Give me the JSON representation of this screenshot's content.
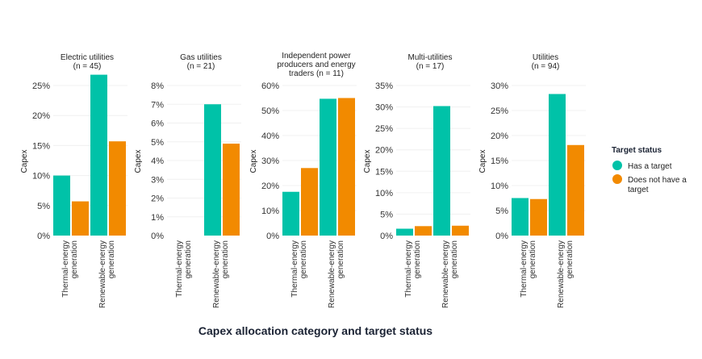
{
  "chart_data": {
    "type": "bar",
    "xlabel": "Capex allocation category and target status",
    "ylabel": "Capex",
    "categories": [
      "Thermal-energy generation",
      "Renewable-energy generation"
    ],
    "category_label_lines": [
      [
        "Thermal-energy",
        "generation"
      ],
      [
        "Renewable-energy",
        "generation"
      ]
    ],
    "legend": {
      "title": "Target status",
      "position": "right",
      "entries": [
        {
          "name": "Has a target",
          "label_lines": [
            "Has a target"
          ],
          "color": "#00c2a8"
        },
        {
          "name": "Does not have a target",
          "label_lines": [
            "Does not have a",
            "target"
          ],
          "color": "#f28a00"
        }
      ]
    },
    "grid": true,
    "panels": [
      {
        "title_lines": [
          "Electric utilities",
          "(n = 45)"
        ],
        "ylim": [
          0,
          0.25
        ],
        "yticks": [
          "0%",
          "5%",
          "10%",
          "15%",
          "20%",
          "25%"
        ],
        "ytick_values": [
          0,
          0.05,
          0.1,
          0.15,
          0.2,
          0.25
        ],
        "series": [
          {
            "name": "Has a target",
            "values": [
              0.1,
              0.268
            ]
          },
          {
            "name": "Does not have a target",
            "values": [
              0.057,
              0.157
            ]
          }
        ]
      },
      {
        "title_lines": [
          "Gas utilities",
          "(n = 21)"
        ],
        "ylim": [
          0,
          0.08
        ],
        "yticks": [
          "0%",
          "1%",
          "2%",
          "3%",
          "4%",
          "5%",
          "6%",
          "7%",
          "8%"
        ],
        "ytick_values": [
          0,
          0.01,
          0.02,
          0.03,
          0.04,
          0.05,
          0.06,
          0.07,
          0.08
        ],
        "series": [
          {
            "name": "Has a target",
            "values": [
              0.0,
              0.07
            ]
          },
          {
            "name": "Does not have a target",
            "values": [
              0.0,
              0.049
            ]
          }
        ]
      },
      {
        "title_lines": [
          "Independent power",
          "producers and energy",
          "traders (n = 11)"
        ],
        "ylim": [
          0,
          0.6
        ],
        "yticks": [
          "0%",
          "10%",
          "20%",
          "30%",
          "40%",
          "50%",
          "60%"
        ],
        "ytick_values": [
          0,
          0.1,
          0.2,
          0.3,
          0.4,
          0.5,
          0.6
        ],
        "series": [
          {
            "name": "Has a target",
            "values": [
              0.175,
              0.547
            ]
          },
          {
            "name": "Does not have a target",
            "values": [
              0.27,
              0.55
            ]
          }
        ]
      },
      {
        "title_lines": [
          "Multi-utilities",
          "(n = 17)"
        ],
        "ylim": [
          0,
          0.35
        ],
        "yticks": [
          "0%",
          "5%",
          "10%",
          "15%",
          "20%",
          "25%",
          "30%",
          "35%"
        ],
        "ytick_values": [
          0,
          0.05,
          0.1,
          0.15,
          0.2,
          0.25,
          0.3,
          0.35
        ],
        "series": [
          {
            "name": "Has a target",
            "values": [
              0.016,
              0.302
            ]
          },
          {
            "name": "Does not have a target",
            "values": [
              0.022,
              0.023
            ]
          }
        ]
      },
      {
        "title_lines": [
          "Utilities",
          "(n = 94)"
        ],
        "ylim": [
          0,
          0.3
        ],
        "yticks": [
          "0%",
          "5%",
          "10%",
          "15%",
          "20%",
          "25%",
          "30%"
        ],
        "ytick_values": [
          0,
          0.05,
          0.1,
          0.15,
          0.2,
          0.25,
          0.3
        ],
        "series": [
          {
            "name": "Has a target",
            "values": [
              0.075,
              0.283
            ]
          },
          {
            "name": "Does not have a target",
            "values": [
              0.073,
              0.181
            ]
          }
        ]
      }
    ]
  }
}
